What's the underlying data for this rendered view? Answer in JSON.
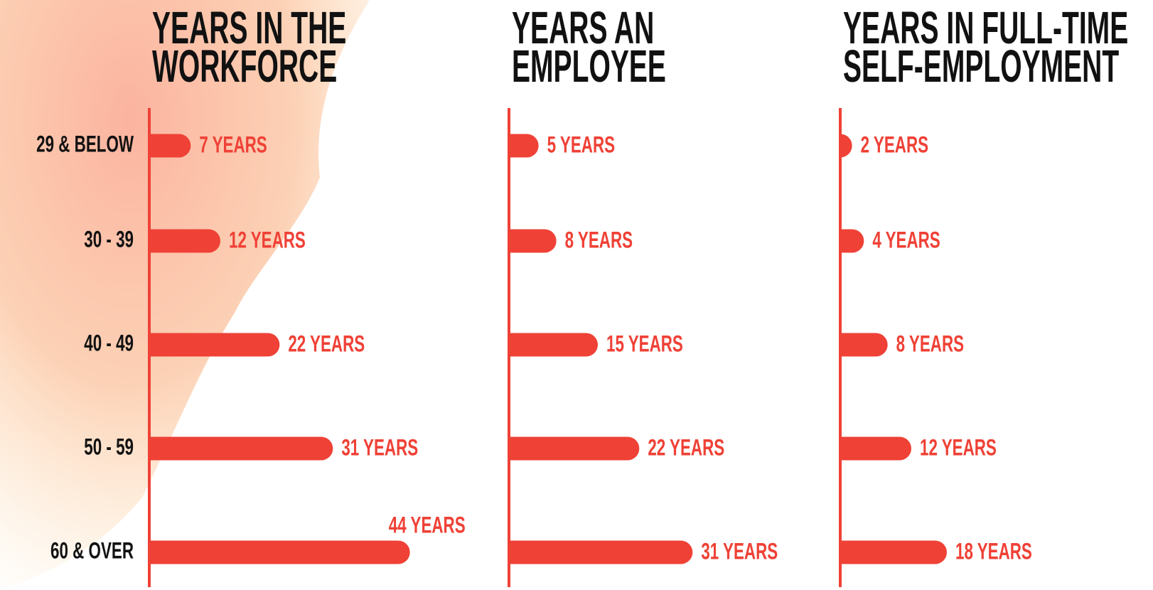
{
  "chart_data": [
    {
      "type": "bar",
      "orientation": "horizontal",
      "title": "YEARS IN THE WORKFORCE",
      "color": "#ef4136",
      "categories": [
        "29 & BELOW",
        "30 - 39",
        "40 - 49",
        "50 - 59",
        "60 & OVER"
      ],
      "values": [
        7,
        12,
        22,
        31,
        44
      ],
      "value_labels": [
        "7 YEARS",
        "12 YEARS",
        "22 YEARS",
        "31 YEARS",
        "44 YEARS"
      ],
      "xlim": [
        0,
        60
      ]
    },
    {
      "type": "bar",
      "orientation": "horizontal",
      "title": "YEARS AN EMPLOYEE",
      "color": "#ef4136",
      "values": [
        5,
        8,
        15,
        22,
        31
      ],
      "value_labels": [
        "5 YEARS",
        "8 YEARS",
        "15 YEARS",
        "22 YEARS",
        "31 YEARS"
      ],
      "xlim": [
        0,
        60
      ]
    },
    {
      "type": "bar",
      "orientation": "horizontal",
      "title": "YEARS IN FULL-TIME SELF-EMPLOYMENT",
      "color": "#ef4136",
      "values": [
        2,
        4,
        8,
        12,
        18
      ],
      "value_labels": [
        "2 YEARS",
        "4 YEARS",
        "8 YEARS",
        "12 YEARS",
        "18 YEARS"
      ],
      "xlim": [
        0,
        60
      ]
    }
  ]
}
